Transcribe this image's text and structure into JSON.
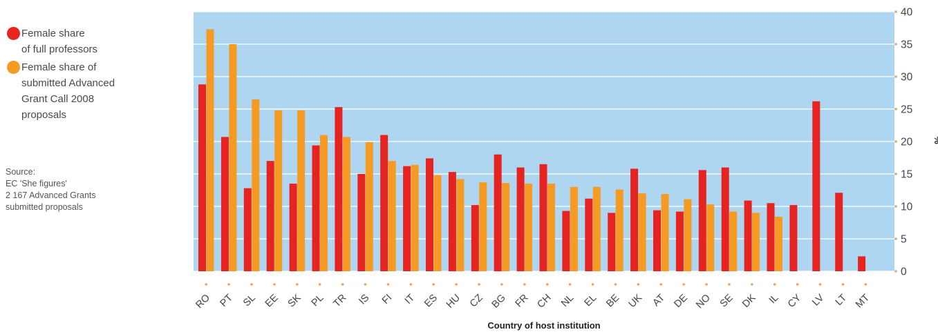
{
  "legend": {
    "items": [
      {
        "label": "Female share\nof full professors",
        "color": "#e52421"
      },
      {
        "label": "Female share of\nsubmitted Advanced\nGrant Call 2008\nproposals",
        "color": "#f59a23"
      }
    ]
  },
  "source": "Source:\nEC 'She figures'\n2 167 Advanced Grants\nsubmitted proposals",
  "colors": {
    "plot_bg": "#aed6f1",
    "grid": "#ffffff",
    "tick_dot": "#f0a060"
  },
  "chart_data": {
    "type": "bar",
    "xlabel": "Country of host institution",
    "ylabel": "%",
    "ylim": [
      0,
      40
    ],
    "yticks": [
      0,
      5,
      10,
      15,
      20,
      25,
      30,
      35,
      40
    ],
    "grid": true,
    "categories": [
      "RO",
      "PT",
      "SL",
      "EE",
      "SK",
      "PL",
      "TR",
      "IS",
      "FI",
      "IT",
      "ES",
      "HU",
      "CZ",
      "BG",
      "FR",
      "CH",
      "NL",
      "EL",
      "BE",
      "UK",
      "AT",
      "DE",
      "NO",
      "SE",
      "DK",
      "IL",
      "CY",
      "LV",
      "LT",
      "MT"
    ],
    "series": [
      {
        "name": "Female share of full professors",
        "color": "#e52421",
        "values": [
          28.8,
          20.7,
          12.8,
          17.0,
          13.5,
          19.4,
          25.3,
          15.0,
          21.0,
          16.2,
          17.4,
          15.3,
          10.2,
          18.0,
          16.0,
          16.5,
          9.3,
          11.2,
          9.0,
          15.8,
          9.4,
          9.2,
          15.6,
          16.0,
          10.9,
          10.5,
          10.2,
          26.2,
          12.1,
          2.3
        ]
      },
      {
        "name": "Female share of submitted Advanced Grant Call 2008 proposals",
        "color": "#f59a23",
        "values": [
          37.3,
          35.0,
          26.5,
          24.8,
          24.8,
          21.0,
          20.7,
          19.9,
          17.0,
          16.4,
          14.8,
          14.2,
          13.7,
          13.6,
          13.5,
          13.5,
          13.0,
          13.0,
          12.6,
          12.0,
          11.9,
          11.1,
          10.3,
          9.2,
          9.0,
          8.4,
          0,
          0,
          0,
          0
        ]
      }
    ]
  }
}
